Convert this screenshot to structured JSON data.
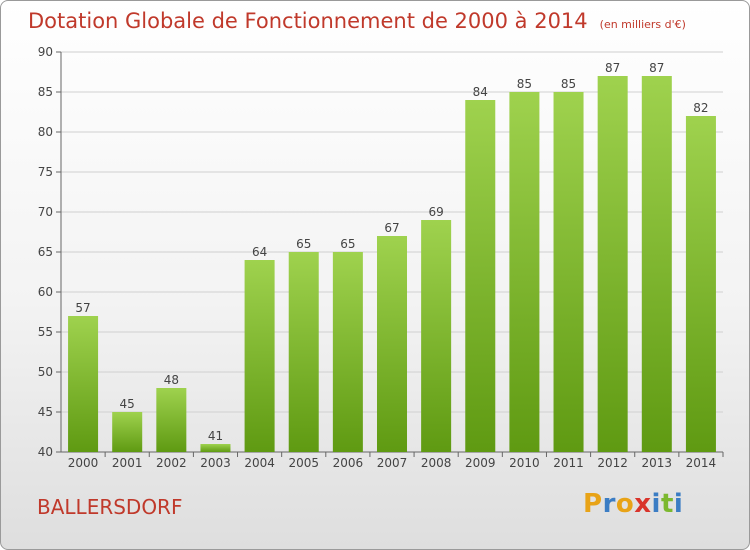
{
  "chart_data": {
    "type": "bar",
    "title": "Dotation Globale de Fonctionnement de 2000 à 2014",
    "subtitle": "(en milliers d'€)",
    "categories": [
      "2000",
      "2001",
      "2002",
      "2003",
      "2004",
      "2005",
      "2006",
      "2007",
      "2008",
      "2009",
      "2010",
      "2011",
      "2012",
      "2013",
      "2014"
    ],
    "values": [
      57,
      45,
      48,
      41,
      64,
      65,
      65,
      67,
      69,
      84,
      85,
      85,
      87,
      87,
      82
    ],
    "ylim": [
      40,
      90
    ],
    "yticks": [
      40,
      45,
      50,
      55,
      60,
      65,
      70,
      75,
      80,
      85,
      90
    ],
    "xlabel": "",
    "ylabel": "",
    "grid": true,
    "colors": {
      "bar_top": "#9fd24e",
      "bar_bottom": "#5f9a12",
      "title": "#c0392b"
    }
  },
  "commune": "BALLERSDORF",
  "logo": {
    "text": "Proxiti",
    "letters": [
      {
        "ch": "P",
        "color": "#e8a317"
      },
      {
        "ch": "r",
        "color": "#3b7dc4"
      },
      {
        "ch": "o",
        "color": "#e8a317"
      },
      {
        "ch": "x",
        "color": "#d9342b"
      },
      {
        "ch": "i",
        "color": "#3b7dc4"
      },
      {
        "ch": "t",
        "color": "#7cb82f"
      },
      {
        "ch": "i",
        "color": "#3b7dc4"
      }
    ]
  }
}
